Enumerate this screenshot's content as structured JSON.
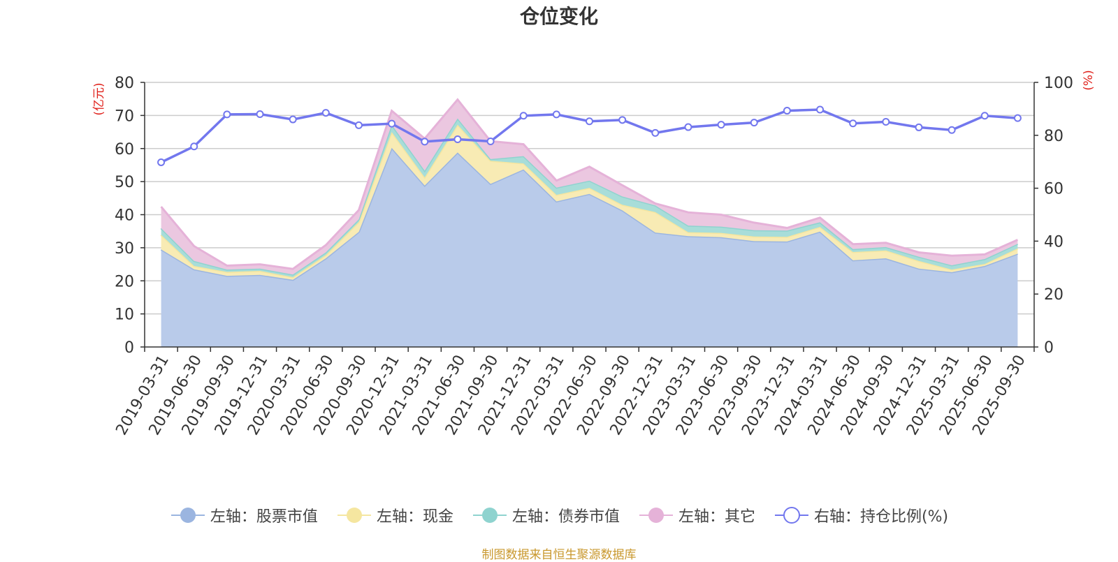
{
  "chart_data": {
    "type": "area",
    "title": "仓位变化",
    "left_axis_unit": "(亿元)",
    "right_axis_unit": "(%)",
    "left_ylim": [
      0,
      80
    ],
    "left_yticks": [
      0,
      10,
      20,
      30,
      40,
      50,
      60,
      70,
      80
    ],
    "right_ylim": [
      0,
      100
    ],
    "right_yticks": [
      0,
      20,
      40,
      60,
      80,
      100
    ],
    "stacked": true,
    "categories": [
      "2019-03-31",
      "2019-06-30",
      "2019-09-30",
      "2019-12-31",
      "2020-03-31",
      "2020-06-30",
      "2020-09-30",
      "2020-12-31",
      "2021-03-31",
      "2021-06-30",
      "2021-09-30",
      "2021-12-31",
      "2022-03-31",
      "2022-06-30",
      "2022-09-30",
      "2022-12-31",
      "2023-03-31",
      "2023-06-30",
      "2023-09-30",
      "2023-12-31",
      "2024-03-31",
      "2024-06-30",
      "2024-09-30",
      "2024-12-31",
      "2025-03-31",
      "2025-06-30",
      "2025-09-30"
    ],
    "series": [
      {
        "name": "左轴：股票市值",
        "axis": "left",
        "color": "#9bb5e0",
        "fill": "#b9cbea",
        "values": [
          29.5,
          23.5,
          21.5,
          21.8,
          20.3,
          26.8,
          34.8,
          60.2,
          48.8,
          58.8,
          49.3,
          53.7,
          44.0,
          46.3,
          41.3,
          34.6,
          33.5,
          33.2,
          32.0,
          31.9,
          34.9,
          26.2,
          26.8,
          23.7,
          22.6,
          24.5,
          28.2
        ]
      },
      {
        "name": "左轴：现金",
        "axis": "left",
        "color": "#f5e6a0",
        "fill": "#f8ebb4",
        "values": [
          4.4,
          1.0,
          1.2,
          1.2,
          0.8,
          1.0,
          3.0,
          4.8,
          2.5,
          8.4,
          7.0,
          1.8,
          2.0,
          1.8,
          1.7,
          6.2,
          1.2,
          1.3,
          1.4,
          1.4,
          1.4,
          2.5,
          2.4,
          2.3,
          0.8,
          0.6,
          1.6
        ]
      },
      {
        "name": "左轴：债券市值",
        "axis": "left",
        "color": "#8fd3cf",
        "fill": "#a8ddd9",
        "values": [
          2.0,
          1.5,
          0.7,
          0.7,
          0.8,
          0.8,
          0.8,
          2.2,
          2.0,
          1.9,
          0.5,
          2.2,
          2.2,
          2.2,
          2.5,
          2.0,
          2.0,
          1.9,
          1.9,
          1.9,
          1.4,
          0.9,
          1.0,
          1.3,
          1.3,
          1.5,
          1.4
        ]
      },
      {
        "name": "左轴：其它",
        "axis": "left",
        "color": "#e5b2d8",
        "fill": "#ebc7e0",
        "values": [
          6.5,
          4.5,
          1.2,
          1.3,
          1.7,
          2.2,
          2.8,
          4.2,
          9.7,
          5.7,
          5.4,
          3.6,
          2.1,
          4.2,
          3.4,
          0.6,
          4.0,
          3.6,
          2.3,
          0.8,
          1.4,
          1.5,
          1.3,
          1.3,
          2.9,
          1.4,
          1.2
        ]
      },
      {
        "name": "右轴：持仓比例(%)",
        "axis": "right",
        "color": "#7277ee",
        "values": [
          69.8,
          75.8,
          87.9,
          88.0,
          86.0,
          88.5,
          83.8,
          84.4,
          77.6,
          78.5,
          77.7,
          87.4,
          87.9,
          85.3,
          85.8,
          80.9,
          83.1,
          84.0,
          84.8,
          89.3,
          89.7,
          84.5,
          85.1,
          83.0,
          82.0,
          87.4,
          86.5
        ]
      }
    ],
    "source_note": "制图数据来自恒生聚源数据库"
  }
}
